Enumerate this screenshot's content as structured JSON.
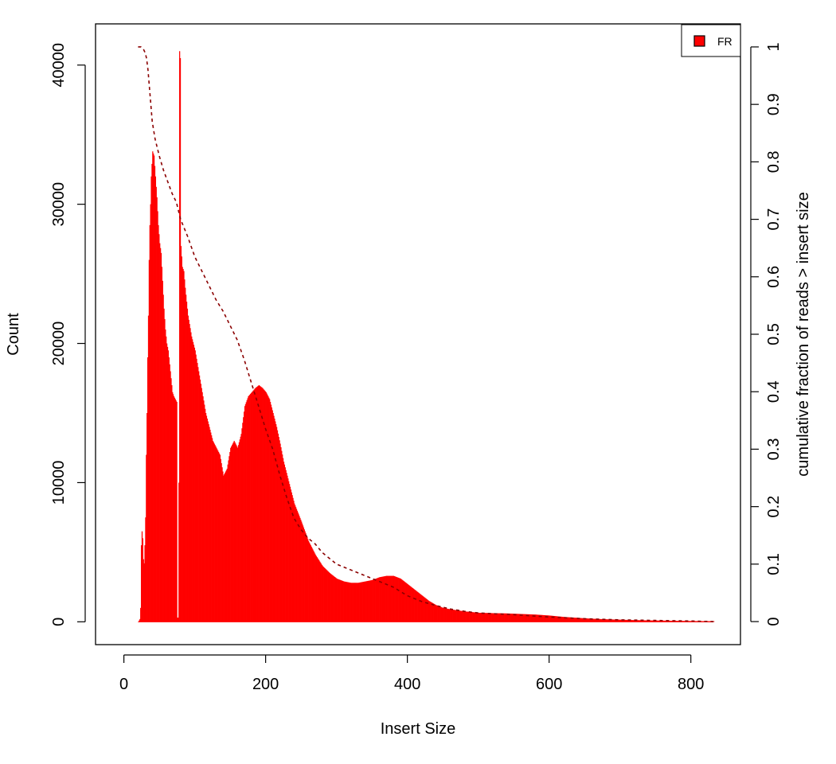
{
  "chart_data": {
    "type": "bar",
    "title": "",
    "xlabel": "Insert Size",
    "ylabel": "Count",
    "y2label": "cumulative fraction of reads > insert size",
    "xlim": [
      -40,
      870
    ],
    "ylim": [
      -1640,
      42960
    ],
    "y2lim": [
      -0.0401,
      1.0401
    ],
    "x_ticks": [
      0,
      200,
      400,
      600,
      800
    ],
    "y_ticks": [
      0,
      10000,
      20000,
      30000,
      40000
    ],
    "y2_ticks": [
      0,
      0.1,
      0.2,
      0.3,
      0.4,
      0.5,
      0.6,
      0.7,
      0.8,
      0.9,
      1
    ],
    "y2_tick_labels": [
      "0",
      "0.1",
      "0.2",
      "0.3",
      "0.4",
      "0.5",
      "0.6",
      "0.7",
      "0.8",
      "0.9",
      "1"
    ],
    "grid": false,
    "legend_position": "top-right",
    "series": [
      {
        "name": "FR",
        "kind": "histogram",
        "color": "#ff0000",
        "bin_width": 1,
        "x_start": 20,
        "x_end": 832,
        "key_points": [
          [
            20,
            0
          ],
          [
            22,
            200
          ],
          [
            23,
            1000
          ],
          [
            24,
            5500
          ],
          [
            25,
            6500
          ],
          [
            26,
            6000
          ],
          [
            27,
            4500
          ],
          [
            28,
            4200
          ],
          [
            29,
            5500
          ],
          [
            30,
            7500
          ],
          [
            31,
            12000
          ],
          [
            32,
            15000
          ],
          [
            33,
            19000
          ],
          [
            34,
            22000
          ],
          [
            35,
            26000
          ],
          [
            36,
            28500
          ],
          [
            37,
            30000
          ],
          [
            38,
            32000
          ],
          [
            40,
            33800
          ],
          [
            42,
            33500
          ],
          [
            44,
            32000
          ],
          [
            46,
            30500
          ],
          [
            48,
            28500
          ],
          [
            50,
            27200
          ],
          [
            52,
            26500
          ],
          [
            54,
            24500
          ],
          [
            56,
            22500
          ],
          [
            58,
            21000
          ],
          [
            60,
            20000
          ],
          [
            62,
            19500
          ],
          [
            64,
            18500
          ],
          [
            66,
            17500
          ],
          [
            68,
            16500
          ],
          [
            70,
            16200
          ],
          [
            72,
            16000
          ],
          [
            74,
            15800
          ],
          [
            75,
            300
          ],
          [
            76,
            300
          ],
          [
            77,
            10000
          ],
          [
            78,
            41000
          ],
          [
            79,
            40500
          ],
          [
            80,
            27000
          ],
          [
            82,
            25500
          ],
          [
            84,
            25200
          ],
          [
            86,
            24000
          ],
          [
            88,
            23000
          ],
          [
            90,
            22000
          ],
          [
            95,
            20500
          ],
          [
            100,
            19500
          ],
          [
            105,
            18000
          ],
          [
            110,
            16500
          ],
          [
            115,
            15000
          ],
          [
            120,
            14000
          ],
          [
            125,
            13000
          ],
          [
            130,
            12500
          ],
          [
            135,
            12000
          ],
          [
            140,
            10500
          ],
          [
            145,
            11000
          ],
          [
            150,
            12500
          ],
          [
            155,
            13000
          ],
          [
            160,
            12500
          ],
          [
            165,
            13500
          ],
          [
            170,
            15500
          ],
          [
            175,
            16200
          ],
          [
            180,
            16500
          ],
          [
            185,
            16800
          ],
          [
            190,
            17000
          ],
          [
            195,
            16800
          ],
          [
            200,
            16500
          ],
          [
            205,
            16000
          ],
          [
            210,
            15000
          ],
          [
            215,
            14000
          ],
          [
            220,
            12800
          ],
          [
            225,
            11500
          ],
          [
            230,
            10500
          ],
          [
            235,
            9500
          ],
          [
            240,
            8500
          ],
          [
            250,
            7200
          ],
          [
            260,
            5800
          ],
          [
            270,
            4800
          ],
          [
            280,
            4000
          ],
          [
            290,
            3500
          ],
          [
            300,
            3100
          ],
          [
            310,
            2900
          ],
          [
            320,
            2800
          ],
          [
            330,
            2800
          ],
          [
            340,
            2900
          ],
          [
            350,
            3000
          ],
          [
            360,
            3200
          ],
          [
            370,
            3300
          ],
          [
            380,
            3300
          ],
          [
            390,
            3100
          ],
          [
            400,
            2700
          ],
          [
            410,
            2300
          ],
          [
            420,
            1900
          ],
          [
            430,
            1500
          ],
          [
            440,
            1200
          ],
          [
            450,
            1000
          ],
          [
            460,
            900
          ],
          [
            480,
            750
          ],
          [
            500,
            650
          ],
          [
            520,
            620
          ],
          [
            540,
            600
          ],
          [
            560,
            560
          ],
          [
            580,
            520
          ],
          [
            600,
            450
          ],
          [
            620,
            350
          ],
          [
            640,
            280
          ],
          [
            660,
            220
          ],
          [
            680,
            180
          ],
          [
            700,
            150
          ],
          [
            720,
            120
          ],
          [
            740,
            100
          ],
          [
            760,
            85
          ],
          [
            780,
            70
          ],
          [
            800,
            55
          ],
          [
            832,
            40
          ]
        ]
      },
      {
        "name": "cumulative fraction",
        "kind": "line",
        "axis": "y2",
        "line_style": "dashed",
        "color": "#8b0000",
        "points": [
          [
            20,
            1.0
          ],
          [
            24,
            1.0
          ],
          [
            28,
            0.995
          ],
          [
            30,
            0.99
          ],
          [
            32,
            0.98
          ],
          [
            34,
            0.96
          ],
          [
            36,
            0.93
          ],
          [
            38,
            0.9
          ],
          [
            40,
            0.87
          ],
          [
            44,
            0.84
          ],
          [
            50,
            0.81
          ],
          [
            56,
            0.785
          ],
          [
            62,
            0.765
          ],
          [
            68,
            0.745
          ],
          [
            74,
            0.73
          ],
          [
            78,
            0.71
          ],
          [
            80,
            0.7
          ],
          [
            90,
            0.67
          ],
          [
            100,
            0.635
          ],
          [
            110,
            0.61
          ],
          [
            120,
            0.585
          ],
          [
            130,
            0.56
          ],
          [
            140,
            0.54
          ],
          [
            150,
            0.515
          ],
          [
            160,
            0.49
          ],
          [
            170,
            0.455
          ],
          [
            180,
            0.415
          ],
          [
            190,
            0.375
          ],
          [
            200,
            0.335
          ],
          [
            210,
            0.3
          ],
          [
            220,
            0.255
          ],
          [
            230,
            0.215
          ],
          [
            240,
            0.18
          ],
          [
            250,
            0.16
          ],
          [
            260,
            0.145
          ],
          [
            270,
            0.135
          ],
          [
            280,
            0.12
          ],
          [
            290,
            0.11
          ],
          [
            300,
            0.1
          ],
          [
            320,
            0.09
          ],
          [
            340,
            0.08
          ],
          [
            360,
            0.07
          ],
          [
            380,
            0.06
          ],
          [
            400,
            0.045
          ],
          [
            420,
            0.035
          ],
          [
            440,
            0.028
          ],
          [
            460,
            0.022
          ],
          [
            480,
            0.018
          ],
          [
            500,
            0.015
          ],
          [
            550,
            0.012
          ],
          [
            600,
            0.008
          ],
          [
            650,
            0.005
          ],
          [
            700,
            0.003
          ],
          [
            750,
            0.002
          ],
          [
            800,
            0.001
          ],
          [
            832,
            0.0
          ]
        ]
      }
    ]
  }
}
